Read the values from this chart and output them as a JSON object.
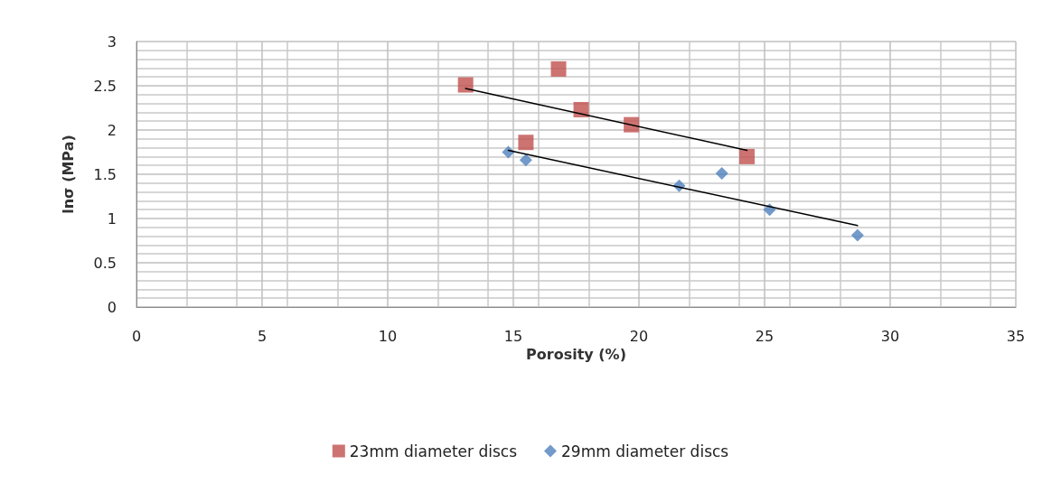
{
  "chart_data": {
    "type": "scatter",
    "xlabel": "Porosity (%)",
    "ylabel": "lnσ (MPa)",
    "xlim": [
      0,
      35
    ],
    "xticks": [
      0,
      5,
      10,
      15,
      20,
      25,
      30,
      35
    ],
    "ylim": [
      0,
      3
    ],
    "yticks": [
      0,
      0.5,
      1,
      1.5,
      2,
      2.5,
      3
    ],
    "grid": true,
    "legend": "bottom",
    "series": [
      {
        "name": "23mm diameter discs",
        "color": "#c0504d",
        "marker": "square",
        "x": [
          13.1,
          16.8,
          17.7,
          15.5,
          19.7,
          24.3
        ],
        "values": [
          2.51,
          2.69,
          2.23,
          1.86,
          2.06,
          1.7
        ]
      },
      {
        "name": "29mm diameter discs",
        "color": "#4f81bd",
        "marker": "diamond",
        "x": [
          14.8,
          15.5,
          21.6,
          23.3,
          25.2,
          28.7
        ],
        "values": [
          1.75,
          1.66,
          1.37,
          1.51,
          1.1,
          0.81
        ]
      },
      {
        "type": "line",
        "color": "#000000",
        "marker": "none",
        "x": [
          13.1,
          24.3
        ],
        "values": [
          2.47,
          1.77
        ]
      },
      {
        "type": "line",
        "color": "#000000",
        "marker": "none",
        "x": [
          14.8,
          28.7
        ],
        "values": [
          1.77,
          0.92
        ]
      }
    ]
  }
}
